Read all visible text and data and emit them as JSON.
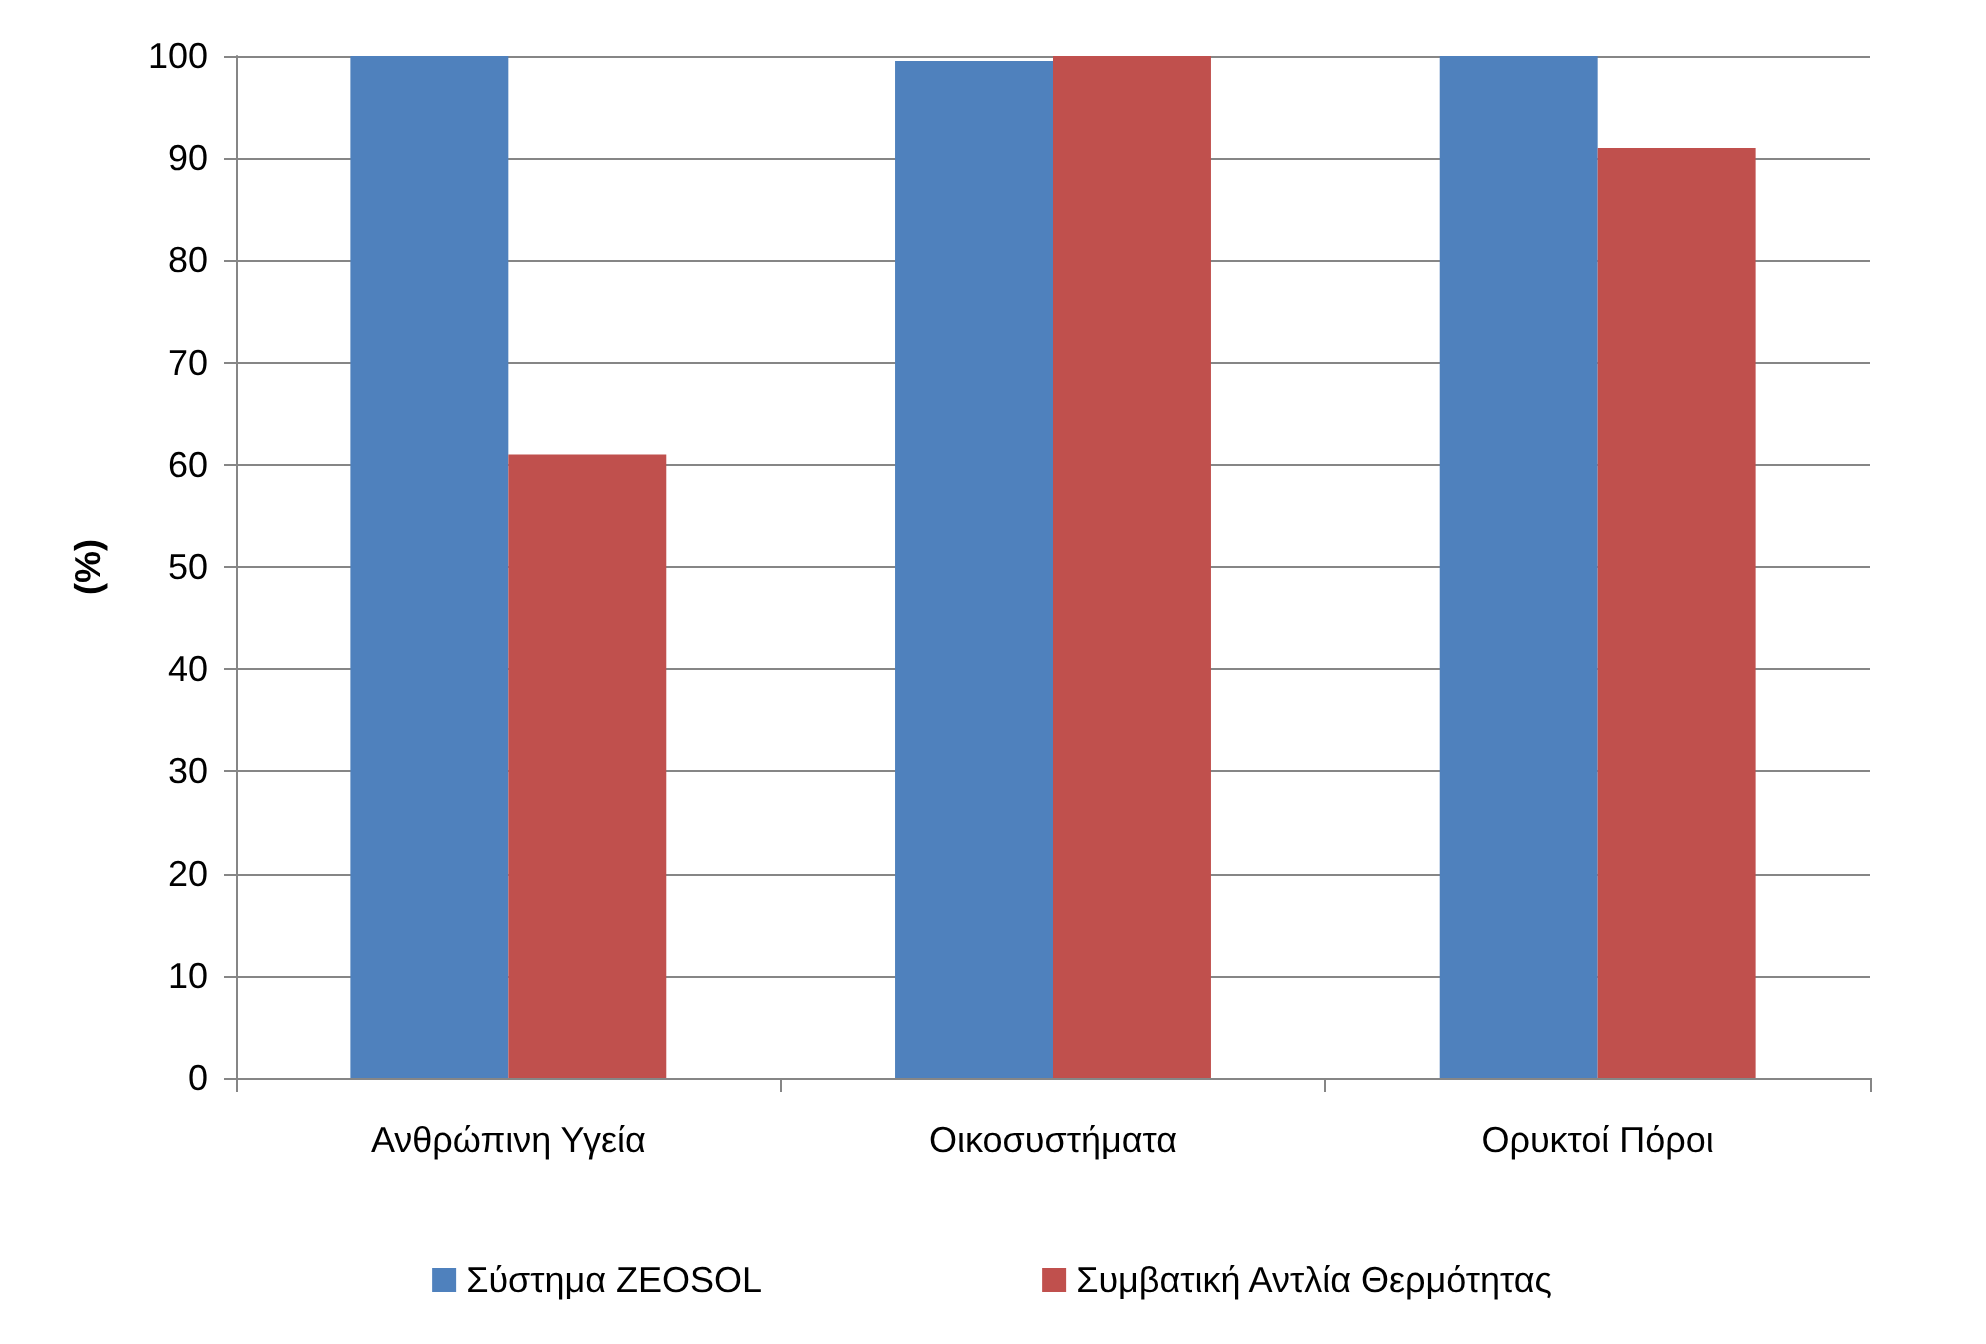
{
  "chart_data": {
    "type": "bar",
    "ylabel": "(%)",
    "categories": [
      "Ανθρώπινη Υγεία",
      "Οικοσυστήματα",
      "Ορυκτοί Πόροι"
    ],
    "series": [
      {
        "name": "Σύστημα ZEOSOL",
        "color": "#4f81bd",
        "values": [
          100,
          99.5,
          100
        ]
      },
      {
        "name": "Συμβατική Αντλία Θερμότητας",
        "color": "#c0504d",
        "values": [
          61,
          100,
          91
        ]
      }
    ],
    "ylim": [
      0,
      100
    ],
    "yticks": [
      0,
      10,
      20,
      30,
      40,
      50,
      60,
      70,
      80,
      90,
      100
    ],
    "grid": "y",
    "legend": "bottom"
  }
}
